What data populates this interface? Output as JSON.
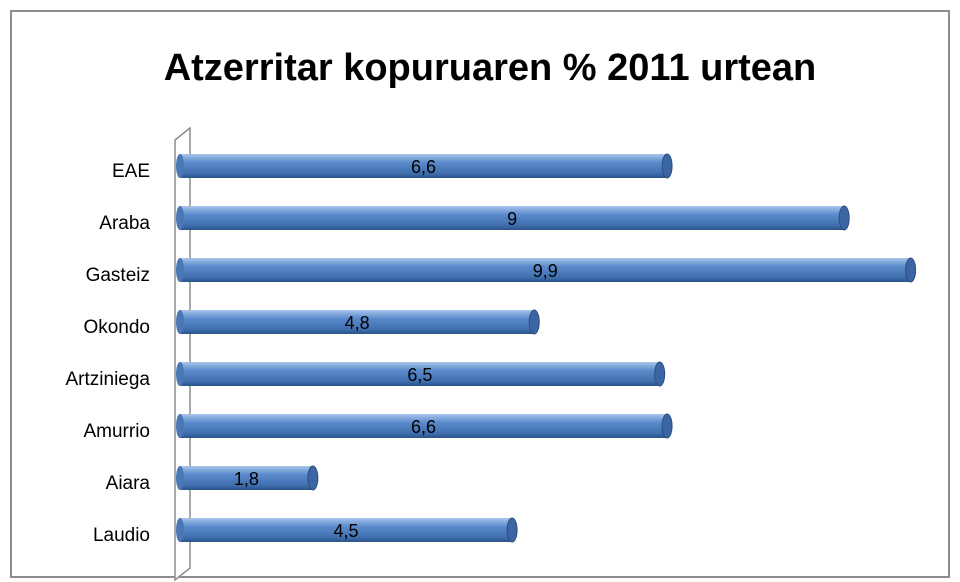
{
  "chart_data": {
    "type": "bar",
    "orientation": "horizontal",
    "title": "Atzerritar kopuruaren % 2011 urtean",
    "categories": [
      "EAE",
      "Araba",
      "Gasteiz",
      "Okondo",
      "Artziniega",
      "Amurrio",
      "Aiara",
      "Laudio"
    ],
    "values": [
      6.6,
      9,
      9.9,
      4.8,
      6.5,
      6.6,
      1.8,
      4.5
    ],
    "value_labels": [
      "6,6",
      "9",
      "9,9",
      "4,8",
      "6,5",
      "6,6",
      "1,8",
      "4,5"
    ],
    "color": "#4f81bd",
    "xlim": [
      0,
      10
    ]
  }
}
